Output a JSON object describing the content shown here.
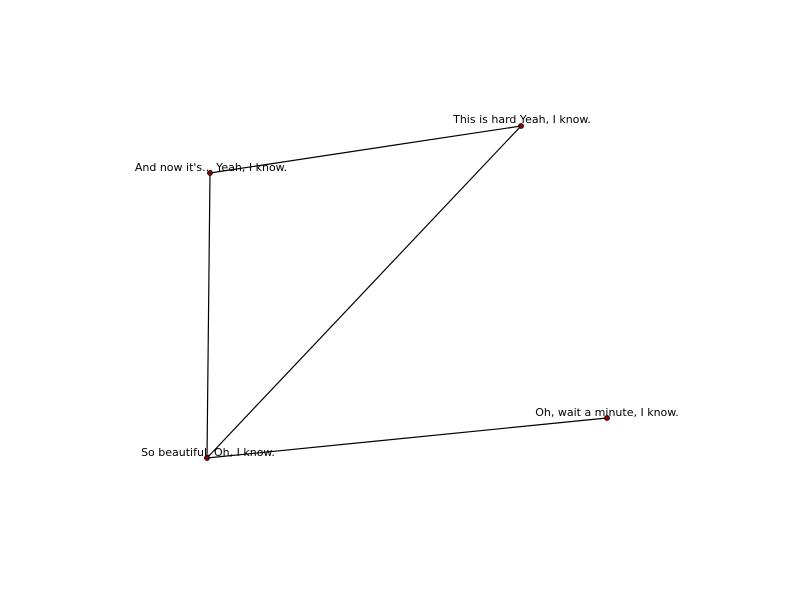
{
  "colors": {
    "node_fill": "#8b0000",
    "node_stroke": "#000000",
    "edge": "#000000",
    "text": "#000000"
  },
  "nodes": [
    {
      "id": "n1",
      "label": "This is hard Yeah, I know."
    },
    {
      "id": "n2",
      "label": "And now it's... Yeah, I know."
    },
    {
      "id": "n3",
      "label": "So beautiful. Oh, I know."
    },
    {
      "id": "n4",
      "label": "Oh, wait a minute, I know."
    }
  ],
  "edges": [
    {
      "from": "n2",
      "to": "n1"
    },
    {
      "from": "n2",
      "to": "n3"
    },
    {
      "from": "n3",
      "to": "n1"
    },
    {
      "from": "n3",
      "to": "n4"
    }
  ]
}
